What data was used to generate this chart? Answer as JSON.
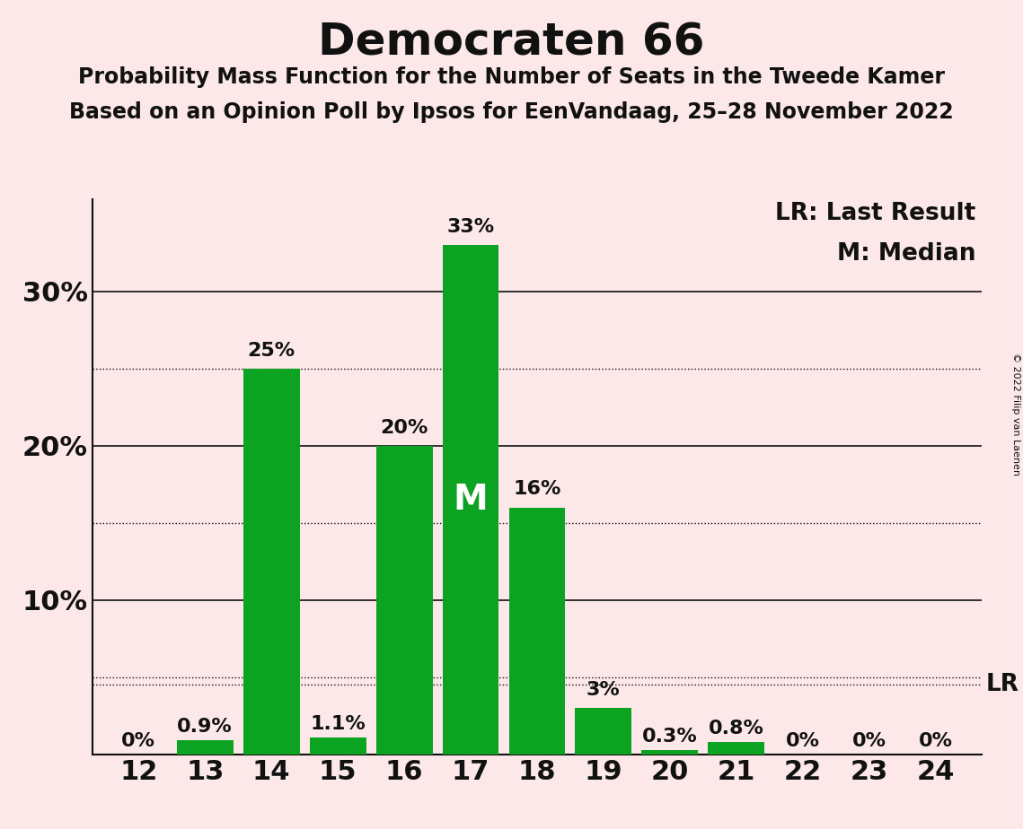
{
  "title": "Democraten 66",
  "subtitle1": "Probability Mass Function for the Number of Seats in the Tweede Kamer",
  "subtitle2": "Based on an Opinion Poll by Ipsos for EenVandaag, 25–28 November 2022",
  "copyright": "© 2022 Filip van Laenen",
  "background_color": "#fce8e8",
  "bar_color": "#0da322",
  "seats": [
    12,
    13,
    14,
    15,
    16,
    17,
    18,
    19,
    20,
    21,
    22,
    23,
    24
  ],
  "probabilities": [
    0.0,
    0.9,
    25.0,
    1.1,
    20.0,
    33.0,
    16.0,
    3.0,
    0.3,
    0.8,
    0.0,
    0.0,
    0.0
  ],
  "labels": [
    "0%",
    "0.9%",
    "25%",
    "1.1%",
    "20%",
    "33%",
    "16%",
    "3%",
    "0.3%",
    "0.8%",
    "0%",
    "0%",
    "0%"
  ],
  "median_seat": 17,
  "lr_value": 4.5,
  "ylim": [
    0,
    36
  ],
  "yticks": [
    0,
    10,
    20,
    30
  ],
  "ytick_labels": [
    "",
    "10%",
    "20%",
    "30%"
  ],
  "solid_lines": [
    10,
    20,
    30
  ],
  "dotted_lines": [
    5,
    15,
    25
  ],
  "legend_lr": "LR: Last Result",
  "legend_m": "M: Median",
  "text_color": "#111111"
}
